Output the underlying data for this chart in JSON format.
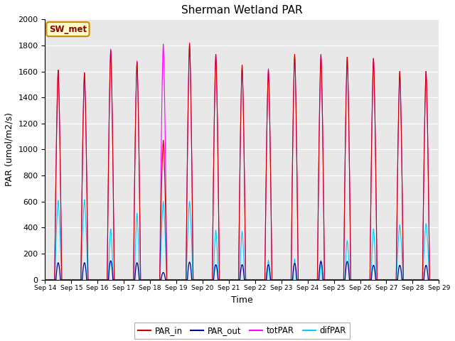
{
  "title": "Sherman Wetland PAR",
  "xlabel": "Time",
  "ylabel": "PAR (umol/m2/s)",
  "ylim": [
    0,
    2000
  ],
  "yticks": [
    0,
    200,
    400,
    600,
    800,
    1000,
    1200,
    1400,
    1600,
    1800,
    2000
  ],
  "start_day": 14,
  "end_day": 29,
  "days": 15,
  "points_per_day": 96,
  "colors": {
    "PAR_in": "#cc0000",
    "PAR_out": "#000099",
    "totPAR": "#ff00ff",
    "difPAR": "#00ccff"
  },
  "legend_label": "SW_met",
  "background_color": "#e8e8e8",
  "fig_background": "#ffffff",
  "par_in_peaks": [
    1610,
    1590,
    1760,
    1670,
    1070,
    1810,
    1730,
    1650,
    1610,
    1730,
    1730,
    1710,
    1700,
    1600,
    1600
  ],
  "tot_par_peaks": [
    1610,
    1580,
    1770,
    1680,
    1810,
    1820,
    1730,
    1640,
    1620,
    1730,
    1720,
    1710,
    1700,
    1590,
    1600
  ],
  "dif_par_peaks": [
    610,
    615,
    390,
    510,
    600,
    600,
    380,
    370,
    150,
    160,
    150,
    300,
    390,
    420,
    430
  ],
  "par_out_peaks": [
    130,
    130,
    145,
    130,
    55,
    135,
    115,
    115,
    115,
    125,
    140,
    140,
    110,
    110,
    110
  ],
  "dif_par_widths": [
    0.13,
    0.13,
    0.1,
    0.1,
    0.13,
    0.13,
    0.1,
    0.1,
    0.06,
    0.06,
    0.06,
    0.1,
    0.1,
    0.13,
    0.13
  ]
}
